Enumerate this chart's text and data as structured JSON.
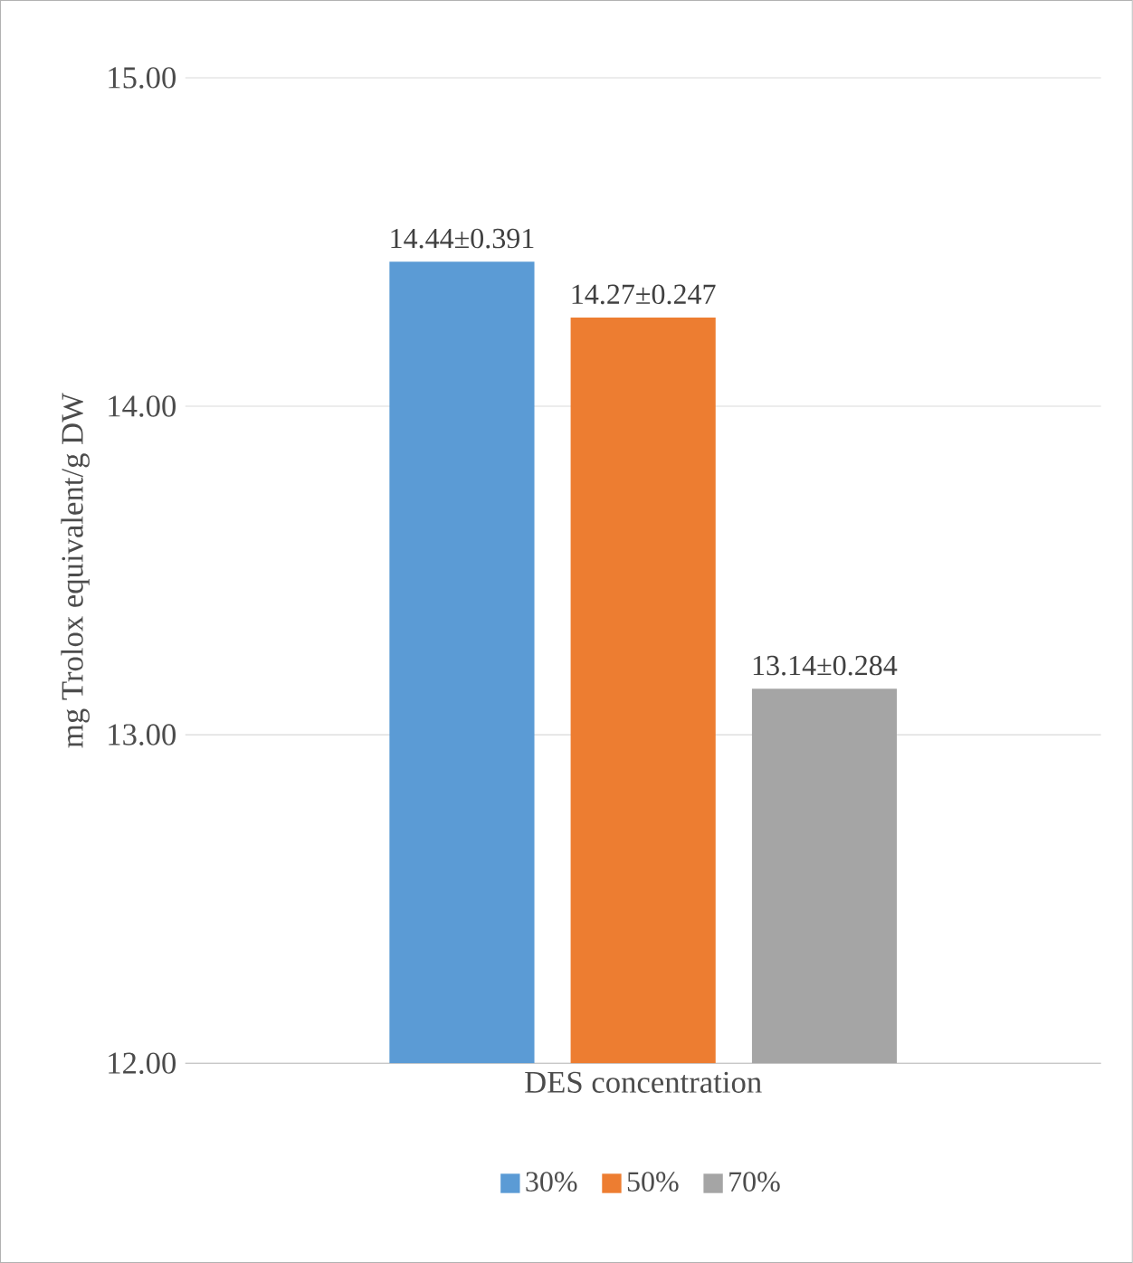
{
  "chart_data": {
    "type": "bar",
    "ylabel": "mg Trolox equivalent/g DW",
    "categories": [
      "DES concentration"
    ],
    "series": [
      {
        "name": "30%",
        "color": "#5b9bd5",
        "values": [
          14.44
        ],
        "value_labels": [
          "14.44±0.391"
        ]
      },
      {
        "name": "50%",
        "color": "#ed7d31",
        "values": [
          14.27
        ],
        "value_labels": [
          "14.27±0.247"
        ]
      },
      {
        "name": "70%",
        "color": "#a5a5a5",
        "values": [
          13.14
        ],
        "value_labels": [
          "13.14±0.284"
        ]
      }
    ],
    "ylim": [
      12,
      15
    ],
    "yticks": [
      {
        "value": 12,
        "label": "12.00"
      },
      {
        "value": 13,
        "label": "13.00"
      },
      {
        "value": 14,
        "label": "14.00"
      },
      {
        "value": 15,
        "label": "15.00"
      }
    ],
    "grid": "y",
    "legend": "bottom"
  }
}
